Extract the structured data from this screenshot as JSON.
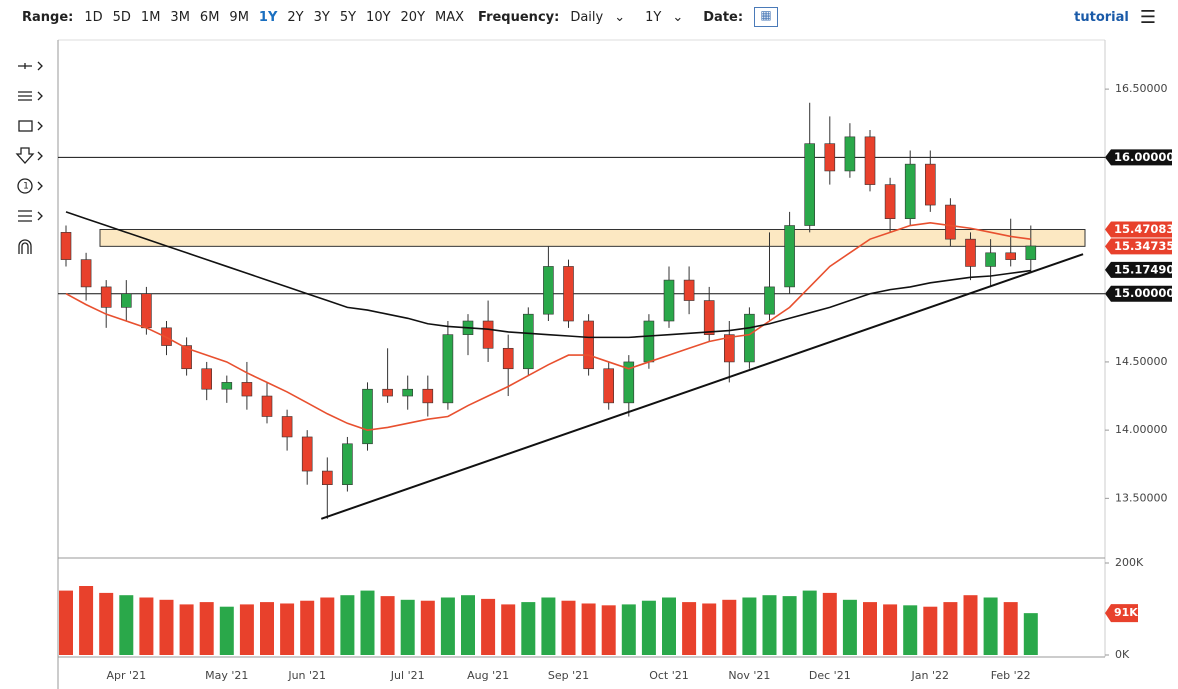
{
  "toolbar": {
    "range_label": "Range:",
    "ranges": [
      "1D",
      "5D",
      "1M",
      "3M",
      "6M",
      "9M",
      "1Y",
      "2Y",
      "3Y",
      "5Y",
      "10Y",
      "20Y",
      "MAX"
    ],
    "active_range": "1Y",
    "frequency_label": "Frequency:",
    "frequency": "Daily",
    "period": "1Y",
    "date_label": "Date:",
    "tutorial": "tutorial"
  },
  "chart_data": {
    "type": "candlestick",
    "categories": [
      null,
      null,
      null,
      "Apr '21",
      null,
      null,
      null,
      null,
      "May '21",
      null,
      null,
      null,
      "Jun '21",
      null,
      null,
      null,
      null,
      "Jul '21",
      null,
      null,
      null,
      "Aug '21",
      null,
      null,
      null,
      "Sep '21",
      null,
      null,
      null,
      null,
      "Oct '21",
      null,
      null,
      null,
      "Nov '21",
      null,
      null,
      null,
      "Dec '21",
      null,
      null,
      null,
      null,
      "Jan '22",
      null,
      null,
      null,
      "Feb '22",
      null
    ],
    "open": [
      15.45,
      15.25,
      15.05,
      14.9,
      15.0,
      14.75,
      14.62,
      14.45,
      14.3,
      14.35,
      14.25,
      14.1,
      13.95,
      13.7,
      13.6,
      13.9,
      14.3,
      14.25,
      14.3,
      14.2,
      14.7,
      14.8,
      14.6,
      14.45,
      14.85,
      15.2,
      14.8,
      14.45,
      14.2,
      14.5,
      14.8,
      15.1,
      14.95,
      14.7,
      14.5,
      14.85,
      15.05,
      15.5,
      16.1,
      15.9,
      16.15,
      15.8,
      15.55,
      15.95,
      15.65,
      15.4,
      15.2,
      15.3,
      15.25
    ],
    "high": [
      15.5,
      15.3,
      15.1,
      15.1,
      15.05,
      14.8,
      14.68,
      14.5,
      14.4,
      14.5,
      14.35,
      14.15,
      14.0,
      13.8,
      13.95,
      14.35,
      14.6,
      14.4,
      14.4,
      14.8,
      14.85,
      14.95,
      14.7,
      14.9,
      15.35,
      15.25,
      14.85,
      14.5,
      14.55,
      14.85,
      15.2,
      15.2,
      15.05,
      14.8,
      14.9,
      15.45,
      15.6,
      16.4,
      16.3,
      16.25,
      16.2,
      15.85,
      16.05,
      16.05,
      15.7,
      15.45,
      15.4,
      15.55,
      15.5
    ],
    "low": [
      15.2,
      14.95,
      14.75,
      14.8,
      14.7,
      14.55,
      14.4,
      14.22,
      14.2,
      14.15,
      14.05,
      13.85,
      13.6,
      13.35,
      13.55,
      13.85,
      14.2,
      14.15,
      14.1,
      14.15,
      14.55,
      14.5,
      14.25,
      14.4,
      14.8,
      14.75,
      14.4,
      14.15,
      14.1,
      14.45,
      14.75,
      14.85,
      14.65,
      14.35,
      14.45,
      14.8,
      15.0,
      15.45,
      15.8,
      15.85,
      15.75,
      15.45,
      15.5,
      15.6,
      15.35,
      15.1,
      15.05,
      15.2,
      15.15
    ],
    "close": [
      15.25,
      15.05,
      14.9,
      15.0,
      14.75,
      14.62,
      14.45,
      14.3,
      14.35,
      14.25,
      14.1,
      13.95,
      13.7,
      13.6,
      13.9,
      14.3,
      14.25,
      14.3,
      14.2,
      14.7,
      14.8,
      14.6,
      14.45,
      14.85,
      15.2,
      14.8,
      14.45,
      14.2,
      14.5,
      14.8,
      15.1,
      14.95,
      14.7,
      14.5,
      14.85,
      15.05,
      15.5,
      16.1,
      15.9,
      16.15,
      15.8,
      15.55,
      15.95,
      15.65,
      15.4,
      15.2,
      15.3,
      15.25,
      15.35
    ],
    "up_color": "#2aa84a",
    "down_color": "#e8412c",
    "series": [
      {
        "color": "#e8502f",
        "values": [
          15.0,
          14.92,
          14.85,
          14.8,
          14.75,
          14.68,
          14.6,
          14.55,
          14.5,
          14.42,
          14.35,
          14.28,
          14.2,
          14.12,
          14.05,
          14.0,
          14.02,
          14.05,
          14.08,
          14.1,
          14.18,
          14.25,
          14.32,
          14.4,
          14.48,
          14.55,
          14.55,
          14.5,
          14.45,
          14.5,
          14.55,
          14.6,
          14.65,
          14.68,
          14.7,
          14.8,
          14.9,
          15.05,
          15.2,
          15.3,
          15.4,
          15.45,
          15.5,
          15.52,
          15.5,
          15.48,
          15.45,
          15.42,
          15.4
        ]
      },
      {
        "color": "#111111",
        "values": [
          15.6,
          15.55,
          15.5,
          15.45,
          15.4,
          15.35,
          15.3,
          15.25,
          15.2,
          15.15,
          15.1,
          15.05,
          15.0,
          14.95,
          14.9,
          14.88,
          14.85,
          14.82,
          14.78,
          14.76,
          14.75,
          14.74,
          14.72,
          14.71,
          14.7,
          14.69,
          14.68,
          14.68,
          14.68,
          14.69,
          14.7,
          14.71,
          14.72,
          14.73,
          14.75,
          14.78,
          14.82,
          14.86,
          14.9,
          14.95,
          15.0,
          15.03,
          15.05,
          15.08,
          15.1,
          15.12,
          15.13,
          15.15,
          15.17
        ]
      }
    ],
    "trendline": {
      "color": "#111111",
      "x": [
        12.7,
        50.6
      ],
      "y": [
        13.35,
        15.29
      ]
    },
    "levels": [
      {
        "value": 16.0,
        "label": "16.00000",
        "color": "#111111",
        "line": true
      },
      {
        "value": 15.47083,
        "label": "15.47083",
        "color": "#e8412c",
        "line": false
      },
      {
        "value": 15.34735,
        "label": "15.34735",
        "color": "#e8412c",
        "line": false
      },
      {
        "value": 15.1749,
        "label": "15.17490",
        "color": "#111111",
        "line": false
      },
      {
        "value": 15.0,
        "label": "15.00000",
        "color": "#111111",
        "line": true
      }
    ],
    "zone": {
      "from": 15.34735,
      "to": 15.47083,
      "color": "#fce8c2"
    },
    "ylim": [
      13.07,
      16.86
    ],
    "yticks": [
      {
        "value": 13.5,
        "label": "13.50000"
      },
      {
        "value": 14.0,
        "label": "14.00000"
      },
      {
        "value": 14.5,
        "label": "14.50000"
      },
      {
        "value": 16.5,
        "label": "16.50000"
      }
    ],
    "volume": [
      140000,
      150000,
      135000,
      130000,
      125000,
      120000,
      110000,
      115000,
      105000,
      110000,
      115000,
      112000,
      118000,
      125000,
      130000,
      140000,
      128000,
      120000,
      118000,
      125000,
      130000,
      122000,
      110000,
      115000,
      125000,
      118000,
      112000,
      108000,
      110000,
      118000,
      125000,
      115000,
      112000,
      120000,
      125000,
      130000,
      128000,
      140000,
      135000,
      120000,
      115000,
      110000,
      108000,
      105000,
      115000,
      130000,
      125000,
      115000,
      91000
    ],
    "volume_ylim": [
      0,
      200000
    ],
    "volume_yticks": [
      {
        "value": 0,
        "label": "0K"
      },
      {
        "value": 200000,
        "label": "200K"
      }
    ],
    "volume_tag": {
      "value": 91000,
      "label": "91K"
    }
  }
}
